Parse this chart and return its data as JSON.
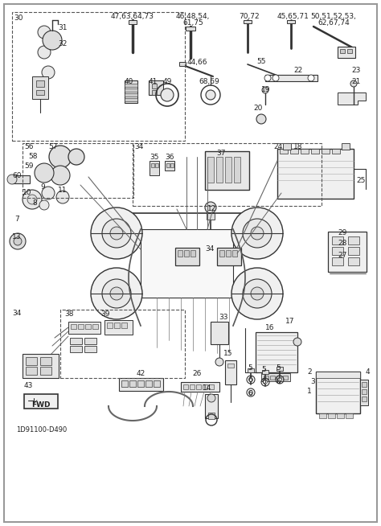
{
  "figsize": [
    4.74,
    6.54
  ],
  "dpi": 100,
  "bg": "#f5f5f5",
  "line_color": "#333333",
  "light_gray": "#cccccc",
  "mid_gray": "#888888",
  "dark_gray": "#444444"
}
